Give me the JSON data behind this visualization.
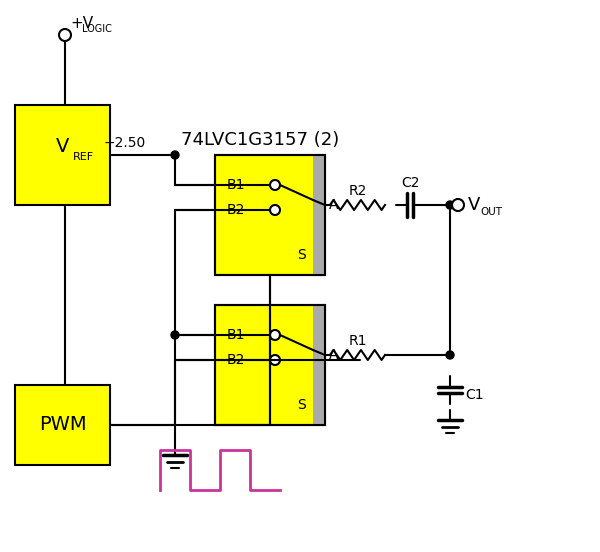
{
  "bg_color": "#ffffff",
  "yellow": "#ffff00",
  "black": "#000000",
  "gray": "#aaaaaa",
  "pink": "#cc3399",
  "title_text": "74LVC1G3157 (2)",
  "vlogic_text": "+V",
  "vlogic_sub": "LOGIC",
  "vref_text": "V",
  "vref_sub": "REF",
  "pwm_text": "PWM",
  "vout_text": "V",
  "vout_sub": "OUT",
  "voltage_label": "+2.50",
  "b1_text": "B1",
  "b2_text": "B2",
  "a_text": "A",
  "s_text": "S",
  "r1_text": "R1",
  "r2_text": "R2",
  "c1_text": "C1",
  "c2_text": "C2"
}
